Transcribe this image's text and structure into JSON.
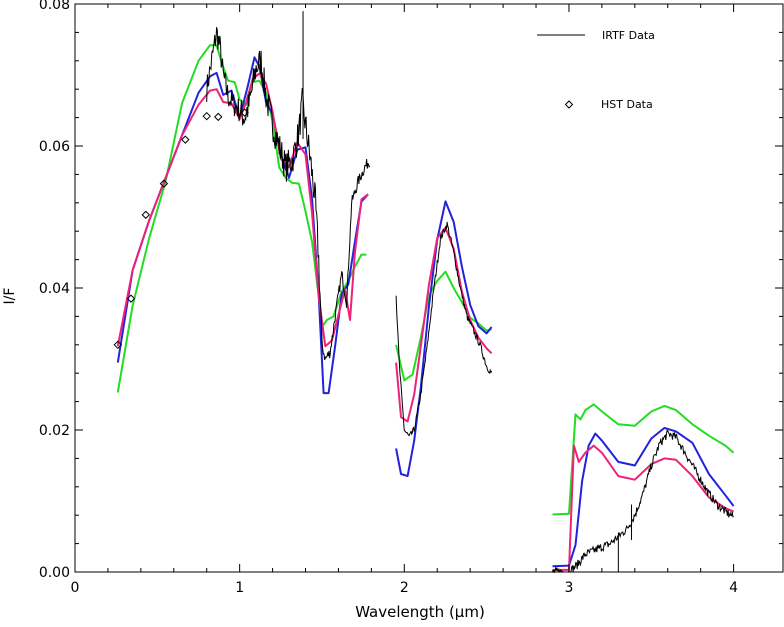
{
  "chart_data": {
    "type": "line",
    "title": "",
    "xlabel": "Wavelength (μm)",
    "ylabel": "I/F",
    "xlim": [
      0,
      4.3
    ],
    "ylim": [
      0,
      0.08
    ],
    "xticks": [
      0,
      1,
      2,
      3,
      4
    ],
    "xtick_labels": [
      "0",
      "1",
      "2",
      "3",
      "4"
    ],
    "yticks": [
      0,
      0.02,
      0.04,
      0.06,
      0.08
    ],
    "ytick_labels": [
      "0.00",
      "0.02",
      "0.04",
      "0.06",
      "0.08"
    ],
    "grid": false,
    "legend_position": "top-right",
    "legend": [
      {
        "label": "IRTF Data",
        "style": "line",
        "color": "#000000"
      },
      {
        "label": "HST Data",
        "style": "diamond",
        "color": "#000000"
      }
    ],
    "series": [
      {
        "name": "IRTF Data",
        "style": "noisy-line",
        "color": "#000000",
        "segments": [
          {
            "x": [
              0.8,
              0.83,
              0.86,
              0.88,
              0.9,
              0.93,
              0.96,
              1.0,
              1.03,
              1.06,
              1.1,
              1.13,
              1.16,
              1.2,
              1.24,
              1.28,
              1.32,
              1.36,
              1.38,
              1.4,
              1.43,
              1.46,
              1.48,
              1.5,
              1.52,
              1.55,
              1.58,
              1.62,
              1.65,
              1.68,
              1.72,
              1.76,
              1.79
            ],
            "y": [
              0.068,
              0.072,
              0.076,
              0.074,
              0.07,
              0.067,
              0.066,
              0.065,
              0.064,
              0.066,
              0.071,
              0.072,
              0.067,
              0.063,
              0.06,
              0.057,
              0.058,
              0.062,
              0.066,
              0.063,
              0.058,
              0.052,
              0.044,
              0.032,
              0.03,
              0.031,
              0.036,
              0.042,
              0.038,
              0.052,
              0.055,
              0.057,
              0.058
            ]
          },
          {
            "x": [
              1.95,
              1.97,
              2.0,
              2.03,
              2.06,
              2.1,
              2.14,
              2.18,
              2.22,
              2.26,
              2.3,
              2.34,
              2.38,
              2.42,
              2.46,
              2.5,
              2.53
            ],
            "y": [
              0.039,
              0.029,
              0.02,
              0.019,
              0.02,
              0.025,
              0.032,
              0.04,
              0.047,
              0.049,
              0.045,
              0.04,
              0.036,
              0.034,
              0.032,
              0.029,
              0.028
            ]
          },
          {
            "x": [
              2.9,
              2.95,
              3.0,
              3.05,
              3.1,
              3.15,
              3.2,
              3.25,
              3.3,
              3.35,
              3.4,
              3.45,
              3.5,
              3.55,
              3.6,
              3.65,
              3.7,
              3.75,
              3.8,
              3.85,
              3.9,
              3.95,
              4.0
            ],
            "y": [
              0.0,
              0.0,
              0.0,
              0.001,
              0.0025,
              0.003,
              0.0035,
              0.004,
              0.005,
              0.006,
              0.008,
              0.011,
              0.015,
              0.018,
              0.0195,
              0.019,
              0.017,
              0.015,
              0.013,
              0.011,
              0.0095,
              0.0085,
              0.0078
            ]
          }
        ]
      },
      {
        "name": "HST Data",
        "style": "diamond",
        "color": "#000000",
        "x": [
          0.26,
          0.34,
          0.43,
          0.54,
          0.67,
          0.8,
          0.87,
          1.03
        ],
        "y": [
          0.032,
          0.0385,
          0.0503,
          0.0547,
          0.0609,
          0.0642,
          0.0641,
          0.0647
        ]
      },
      {
        "color": "#22dd22",
        "style": "line",
        "segments": [
          {
            "x": [
              0.26,
              0.35,
              0.45,
              0.55,
              0.65,
              0.75,
              0.82,
              0.86,
              0.89,
              0.93,
              0.97,
              1.0,
              1.04,
              1.08,
              1.12,
              1.16,
              1.2,
              1.24,
              1.28,
              1.32,
              1.36,
              1.4,
              1.44,
              1.48,
              1.5,
              1.53,
              1.57,
              1.62,
              1.66,
              1.7,
              1.74,
              1.77
            ],
            "y": [
              0.0253,
              0.0375,
              0.047,
              0.055,
              0.066,
              0.072,
              0.0742,
              0.0742,
              0.0718,
              0.0692,
              0.069,
              0.0665,
              0.0658,
              0.069,
              0.0692,
              0.0675,
              0.0635,
              0.057,
              0.0555,
              0.0548,
              0.0547,
              0.0508,
              0.0465,
              0.0388,
              0.0345,
              0.0355,
              0.036,
              0.0395,
              0.041,
              0.043,
              0.0447,
              0.0447
            ]
          },
          {
            "x": [
              1.95,
              2.0,
              2.05,
              2.1,
              2.15,
              2.2,
              2.25,
              2.3,
              2.35,
              2.4,
              2.45,
              2.5,
              2.53
            ],
            "y": [
              0.032,
              0.027,
              0.0278,
              0.033,
              0.039,
              0.041,
              0.0423,
              0.04,
              0.038,
              0.0358,
              0.035,
              0.034,
              0.0342
            ]
          },
          {
            "x": [
              2.9,
              3.0,
              3.04,
              3.07,
              3.1,
              3.15,
              3.2,
              3.3,
              3.4,
              3.5,
              3.58,
              3.65,
              3.75,
              3.85,
              3.95,
              4.0
            ],
            "y": [
              0.0081,
              0.0082,
              0.0222,
              0.0215,
              0.0228,
              0.0236,
              0.0226,
              0.0208,
              0.0206,
              0.0226,
              0.0234,
              0.0228,
              0.0208,
              0.0192,
              0.0178,
              0.0168
            ]
          }
        ]
      },
      {
        "color": "#2222dd",
        "style": "line",
        "segments": [
          {
            "x": [
              0.26,
              0.35,
              0.45,
              0.55,
              0.65,
              0.75,
              0.82,
              0.86,
              0.9,
              0.95,
              1.0,
              1.05,
              1.09,
              1.12,
              1.16,
              1.2,
              1.25,
              1.3,
              1.35,
              1.4,
              1.44,
              1.48,
              1.51,
              1.54,
              1.58,
              1.62,
              1.66,
              1.7,
              1.74,
              1.78
            ],
            "y": [
              0.0295,
              0.0425,
              0.0495,
              0.0555,
              0.0615,
              0.0675,
              0.0698,
              0.0703,
              0.0672,
              0.0678,
              0.064,
              0.0685,
              0.0725,
              0.0712,
              0.0662,
              0.0645,
              0.0588,
              0.0555,
              0.0595,
              0.0598,
              0.0525,
              0.039,
              0.0252,
              0.0252,
              0.0318,
              0.0392,
              0.0405,
              0.0465,
              0.0522,
              0.0532
            ]
          },
          {
            "x": [
              1.95,
              1.98,
              2.02,
              2.06,
              2.1,
              2.15,
              2.2,
              2.25,
              2.3,
              2.35,
              2.4,
              2.45,
              2.5,
              2.53
            ],
            "y": [
              0.0174,
              0.0138,
              0.0135,
              0.0185,
              0.026,
              0.0375,
              0.0468,
              0.0522,
              0.0493,
              0.043,
              0.0376,
              0.0346,
              0.0336,
              0.0345
            ]
          },
          {
            "x": [
              2.9,
              3.0,
              3.04,
              3.08,
              3.12,
              3.16,
              3.2,
              3.3,
              3.4,
              3.5,
              3.58,
              3.65,
              3.75,
              3.85,
              3.95,
              4.0
            ],
            "y": [
              0.0008,
              0.0009,
              0.0038,
              0.0128,
              0.0178,
              0.0195,
              0.0185,
              0.0155,
              0.015,
              0.0188,
              0.0203,
              0.0198,
              0.0182,
              0.0138,
              0.0108,
              0.0093
            ]
          }
        ]
      },
      {
        "color": "#ee2277",
        "style": "line",
        "segments": [
          {
            "x": [
              0.26,
              0.35,
              0.45,
              0.55,
              0.65,
              0.75,
              0.82,
              0.86,
              0.9,
              0.95,
              1.0,
              1.04,
              1.08,
              1.12,
              1.16,
              1.2,
              1.25,
              1.3,
              1.35,
              1.4,
              1.44,
              1.48,
              1.52,
              1.56,
              1.6,
              1.64,
              1.67,
              1.7,
              1.74,
              1.78
            ],
            "y": [
              0.0318,
              0.0425,
              0.0495,
              0.0555,
              0.0615,
              0.0658,
              0.0678,
              0.068,
              0.0662,
              0.066,
              0.0638,
              0.0662,
              0.0695,
              0.0702,
              0.0688,
              0.0648,
              0.0582,
              0.057,
              0.0605,
              0.0588,
              0.0505,
              0.0388,
              0.0318,
              0.0326,
              0.0362,
              0.0398,
              0.0355,
              0.045,
              0.0525,
              0.0532
            ]
          },
          {
            "x": [
              1.95,
              1.98,
              2.02,
              2.06,
              2.1,
              2.15,
              2.2,
              2.25,
              2.3,
              2.35,
              2.4,
              2.45,
              2.5,
              2.53
            ],
            "y": [
              0.0295,
              0.0218,
              0.0212,
              0.025,
              0.0318,
              0.0405,
              0.047,
              0.0485,
              0.0455,
              0.0395,
              0.0355,
              0.033,
              0.0315,
              0.0308
            ]
          },
          {
            "x": [
              2.9,
              3.0,
              3.03,
              3.06,
              3.1,
              3.15,
              3.2,
              3.3,
              3.4,
              3.5,
              3.58,
              3.65,
              3.75,
              3.85,
              3.95,
              4.0
            ],
            "y": [
              0.0003,
              0.0003,
              0.0178,
              0.0155,
              0.0168,
              0.0178,
              0.0168,
              0.0135,
              0.013,
              0.0152,
              0.016,
              0.0158,
              0.0135,
              0.0105,
              0.009,
              0.0085
            ]
          }
        ]
      }
    ]
  }
}
